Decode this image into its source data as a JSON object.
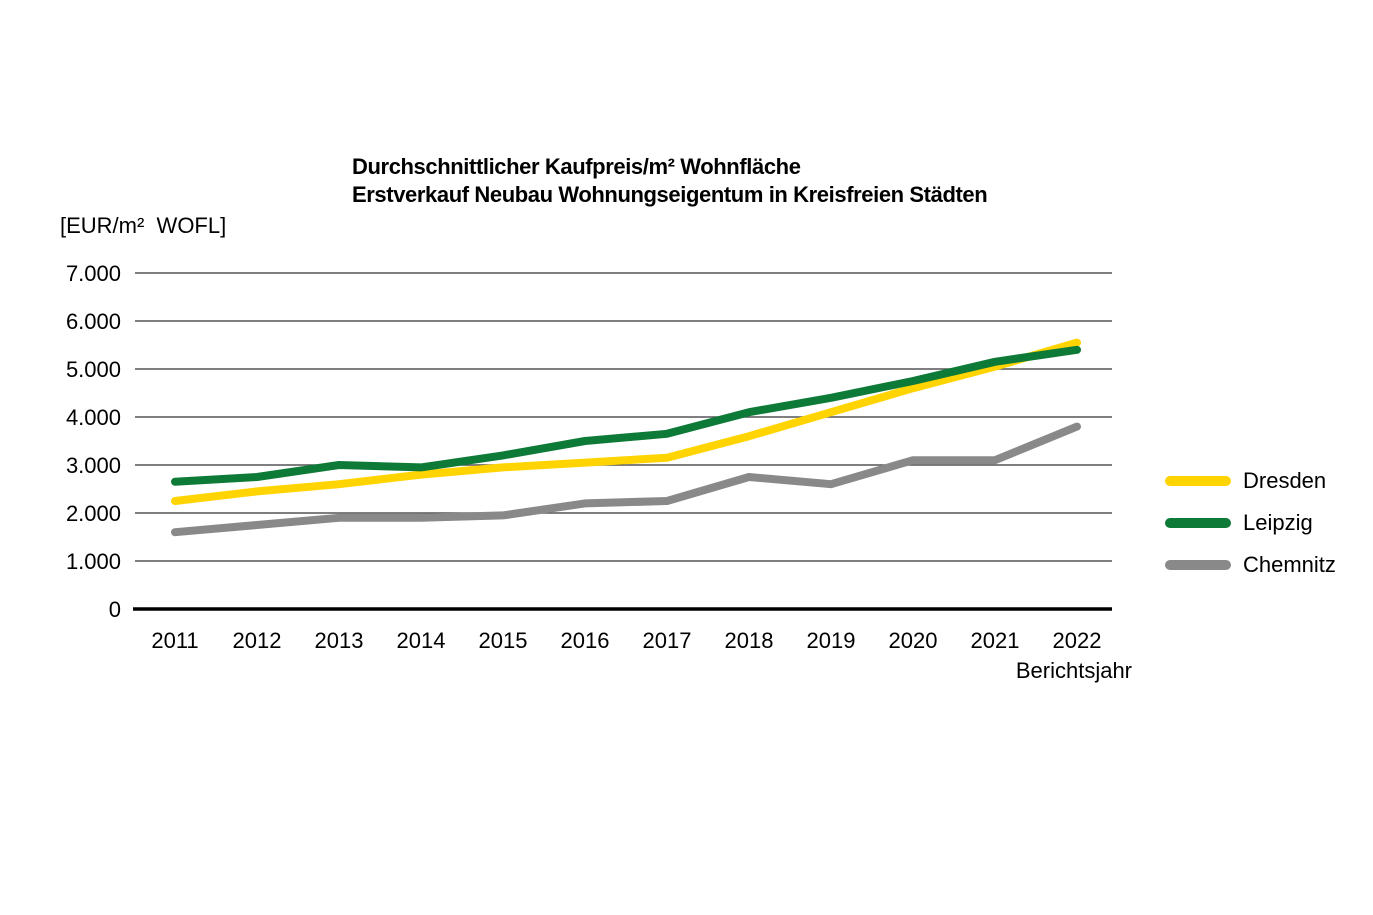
{
  "chart_data": {
    "type": "line",
    "title": "Durchschnittlicher Kaufpreis/m² Wohnfläche",
    "subtitle": "Erstverkauf Neubau Wohnungseigentum in Kreisfreien Städten",
    "unit_label": "[EUR/m²  WOFL]",
    "xlabel": "Berichtsjahr",
    "categories": [
      "2011",
      "2012",
      "2013",
      "2014",
      "2015",
      "2016",
      "2017",
      "2018",
      "2019",
      "2020",
      "2021",
      "2022"
    ],
    "series": [
      {
        "name": "Dresden",
        "color": "#FFD400",
        "values": [
          2250,
          2450,
          2600,
          2800,
          2950,
          3050,
          3150,
          3600,
          4100,
          4600,
          5050,
          5550
        ]
      },
      {
        "name": "Leipzig",
        "color": "#0E7A38",
        "values": [
          2650,
          2750,
          3000,
          2950,
          3200,
          3500,
          3650,
          4100,
          4400,
          4750,
          5150,
          5400
        ]
      },
      {
        "name": "Chemnitz",
        "color": "#898989",
        "values": [
          1600,
          1750,
          1900,
          1900,
          1950,
          2200,
          2250,
          2750,
          2600,
          3100,
          3100,
          3800
        ]
      }
    ],
    "y_axis": {
      "min": 0,
      "max": 7000,
      "tick_step": 1000,
      "tick_labels": [
        "0",
        "1.000",
        "2.000",
        "3.000",
        "4.000",
        "5.000",
        "6.000",
        "7.000"
      ]
    },
    "legend_position": "right",
    "grid": "horizontal",
    "colors": {
      "gridline": "#555558",
      "axis": "#000000",
      "text": "#000000",
      "background": "#FFFFFF"
    }
  }
}
